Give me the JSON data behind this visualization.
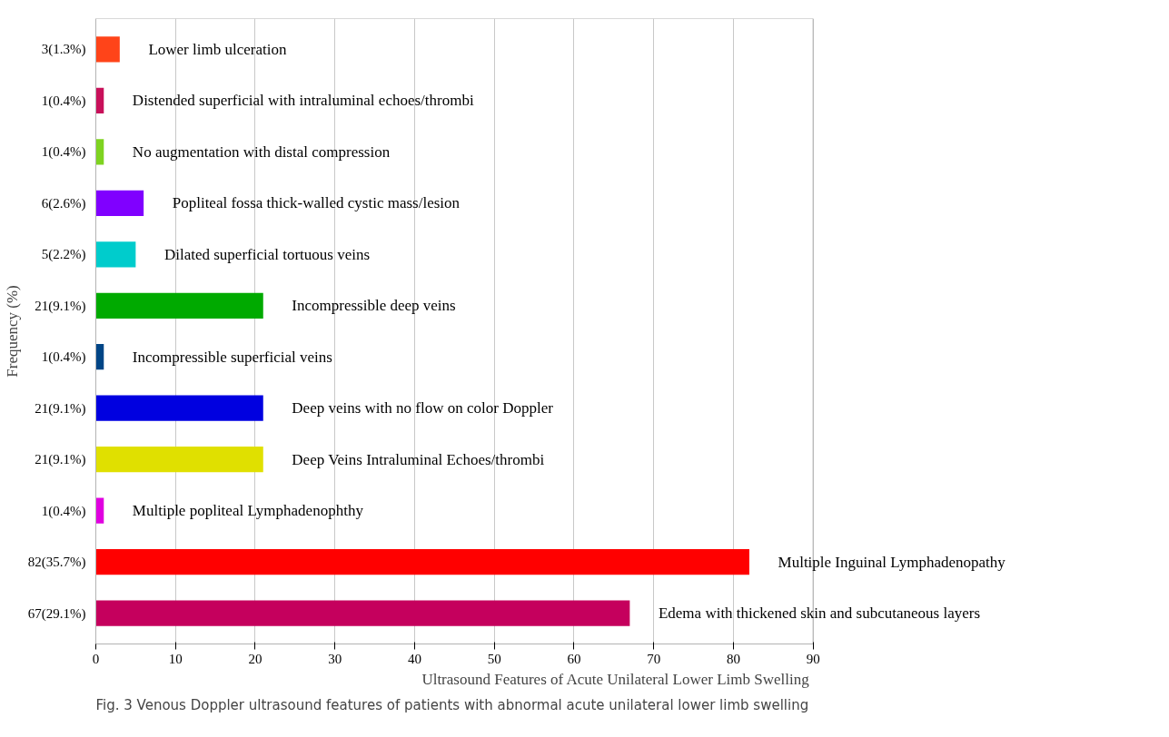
{
  "chart_data": {
    "type": "bar",
    "orientation": "horizontal",
    "xlabel": "Ultrasound Features of Acute Unilateral Lower Limb Swelling",
    "ylabel": "Frequency (%)",
    "categories": [
      "3(1.3%)",
      "1(0.4%)",
      "1(0.4%)",
      "6(2.6%)",
      "5(2.2%)",
      "21(9.1%)",
      "1(0.4%)",
      "21(9.1%)",
      "21(9.1%)",
      "1(0.4%)",
      "82(35.7%)",
      "67(29.1%)"
    ],
    "values": [
      3,
      1,
      1,
      6,
      5,
      21,
      1,
      21,
      21,
      1,
      82,
      67
    ],
    "colors": [
      "#ff4419",
      "#c8105a",
      "#7ed320",
      "#8000ff",
      "#00cccc",
      "#00aa00",
      "#004586",
      "#0000e0",
      "#e0e000",
      "#e000e0",
      "#ff0000",
      "#c5005d"
    ],
    "xlim": [
      0,
      90
    ],
    "xticks": [
      0,
      10,
      20,
      30,
      40,
      50,
      60,
      70,
      80,
      90
    ],
    "grid": "x",
    "annotations": [
      "Lower limb ulceration",
      "Distended superficial with intraluminal echoes/thrombi",
      "No augmentation with distal compression",
      "Popliteal fossa thick-walled cystic mass/lesion",
      "Dilated superficial tortuous veins",
      "Incompressible deep veins",
      "Incompressible superficial veins",
      "Deep veins with no flow on color Doppler",
      "Deep Veins Intraluminal Echoes/thrombi",
      "Multiple popliteal Lymphadenophthy",
      "Multiple Inguinal Lymphadenopathy",
      "Edema with thickened skin and subcutaneous layers",
      "Fig. 3  Venous Doppler ultrasound features of patients with abnormal acute unilateral lower limb swelling"
    ]
  }
}
